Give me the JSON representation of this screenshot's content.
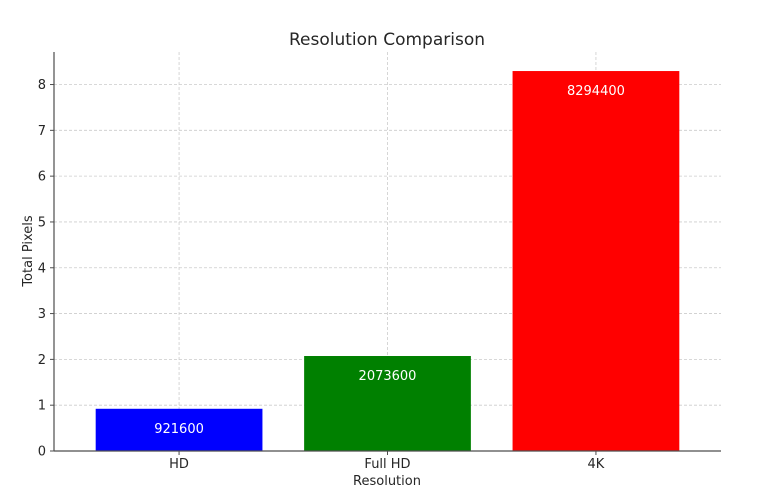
{
  "chart_data": {
    "type": "bar",
    "title": "Resolution Comparison",
    "xlabel": "Resolution",
    "ylabel": "Total Pixels",
    "categories": [
      "HD",
      "Full HD",
      "4K"
    ],
    "values": [
      921600,
      2073600,
      8294400
    ],
    "value_labels": [
      "921600",
      "2073600",
      "8294400"
    ],
    "bar_colors": [
      "#0000ff",
      "#008000",
      "#ff0000"
    ],
    "y_scale_factor": 1000000,
    "yticks": [
      0,
      1,
      2,
      3,
      4,
      5,
      6,
      7,
      8
    ],
    "ylim": [
      0,
      8.71
    ],
    "grid": true,
    "grid_color": "#cccccc",
    "axis_color": "#4d4d4d",
    "legend": "none"
  }
}
